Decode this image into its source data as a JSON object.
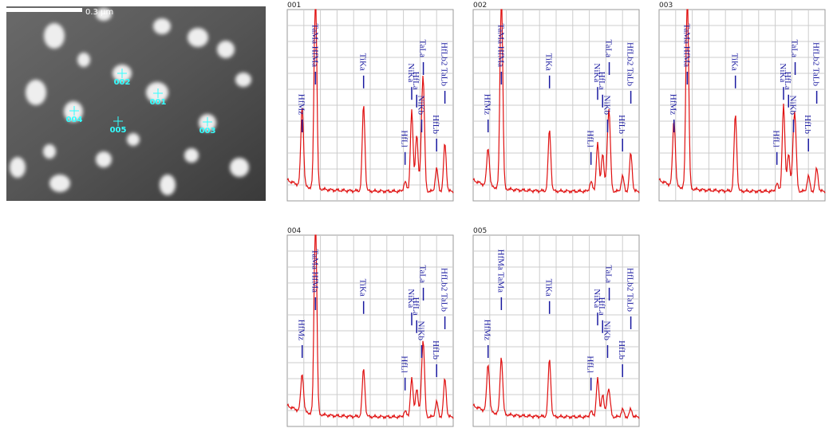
{
  "image": {
    "scale_label": "0.3 µm",
    "points": [
      "001",
      "002",
      "003",
      "004",
      "005"
    ]
  },
  "panels": [
    {
      "title": "001",
      "peaks": [
        "HfMz",
        "TaMa HfMa",
        "TiKa",
        "HfLl",
        "NiKa",
        "HfLa",
        "NiKb",
        "TaLa",
        "HfLb",
        "HfLb2 TaLb"
      ]
    },
    {
      "title": "002",
      "peaks": [
        "HfMz",
        "TaMa HfMa",
        "TiKa",
        "HfLl",
        "NiKa",
        "HfLa",
        "NiKb",
        "TaLa",
        "HfLb",
        "HfLb2 TaLb"
      ]
    },
    {
      "title": "003",
      "peaks": [
        "HfMz",
        "TaMa HfMa",
        "TiKa",
        "HfLl",
        "NiKa",
        "HfLa",
        "NiKb",
        "TaLa",
        "HfLb",
        "HfLb2 TaLb"
      ]
    },
    {
      "title": "004",
      "peaks": [
        "HfMz",
        "TaMa HfMa",
        "TiKa",
        "HfLl",
        "NiKa",
        "HfLa",
        "NiKb",
        "TaLa",
        "HfLb",
        "HfLb2 TaLb"
      ]
    },
    {
      "title": "005",
      "peaks": [
        "HfMz",
        "HfMa TaMa",
        "TiKa",
        "HfLl",
        "NiKa",
        "HfLa",
        "NiKb",
        "TaLa",
        "HfLb",
        "HfLb2 TaLb"
      ]
    }
  ]
}
